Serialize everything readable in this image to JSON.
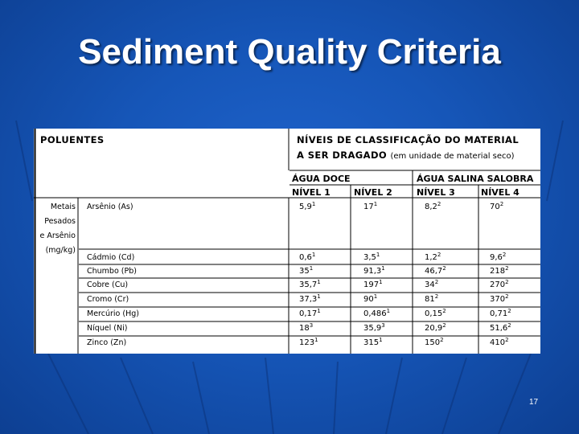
{
  "slide": {
    "title": "Sediment Quality Criteria",
    "page_number": "17"
  },
  "table": {
    "pollutants_header": "POLUENTES",
    "classification_line1": "NÍVEIS DE CLASSIFICAÇÃO DO MATERIAL",
    "classification_line2": "A SER DRAGADO",
    "classification_unit": "(em unidade de material seco)",
    "fresh_water": "ÁGUA DOCE",
    "salt_water": "ÁGUA SALINA SALOBRA",
    "levels": [
      "NÍVEL 1",
      "NÍVEL 2",
      "NÍVEL 3",
      "NÍVEL 4"
    ],
    "group_label": [
      "Metais",
      "Pesados",
      "e Arsênio",
      "(mg/kg)"
    ],
    "rows": [
      {
        "name": "Arsênio (As)",
        "values": [
          [
            "5,9",
            "1"
          ],
          [
            "17",
            "1"
          ],
          [
            "8,2",
            "2"
          ],
          [
            "70",
            "2"
          ]
        ]
      },
      {
        "name": "Cádmio (Cd)",
        "values": [
          [
            "0,6",
            "1"
          ],
          [
            "3,5",
            "1"
          ],
          [
            "1,2",
            "2"
          ],
          [
            "9,6",
            "2"
          ]
        ]
      },
      {
        "name": "Chumbo (Pb)",
        "values": [
          [
            "35",
            "1"
          ],
          [
            "91,3",
            "1"
          ],
          [
            "46,7",
            "2"
          ],
          [
            "218",
            "2"
          ]
        ]
      },
      {
        "name": "Cobre (Cu)",
        "values": [
          [
            "35,7",
            "1"
          ],
          [
            "197",
            "1"
          ],
          [
            "34",
            "2"
          ],
          [
            "270",
            "2"
          ]
        ]
      },
      {
        "name": "Cromo (Cr)",
        "values": [
          [
            "37,3",
            "1"
          ],
          [
            "90",
            "1"
          ],
          [
            "81",
            "2"
          ],
          [
            "370",
            "2"
          ]
        ]
      },
      {
        "name": "Mercúrio (Hg)",
        "values": [
          [
            "0,17",
            "1"
          ],
          [
            "0,486",
            "1"
          ],
          [
            "0,15",
            "2"
          ],
          [
            "0,71",
            "2"
          ]
        ]
      },
      {
        "name": "Níquel (Ni)",
        "values": [
          [
            "18",
            "3"
          ],
          [
            "35,9",
            "3"
          ],
          [
            "20,9",
            "2"
          ],
          [
            "51,6",
            "2"
          ]
        ]
      },
      {
        "name": "Zinco (Zn)",
        "values": [
          [
            "123",
            "1"
          ],
          [
            "315",
            "1"
          ],
          [
            "150",
            "2"
          ],
          [
            "410",
            "2"
          ]
        ]
      }
    ]
  },
  "colors": {
    "background": "#1656b8",
    "title_text": "#ffffff",
    "sheet": "#ffffff"
  }
}
